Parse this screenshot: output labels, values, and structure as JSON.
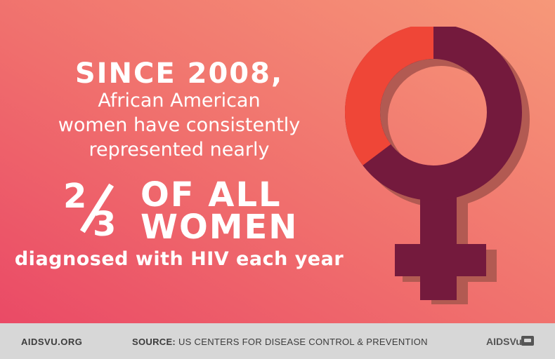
{
  "infographic": {
    "since": "SINCE 2008,",
    "line1": "African American",
    "line2": "women have consistently",
    "line3": "represented nearly",
    "fraction_numerator": "2",
    "fraction_denominator": "3",
    "headline_line1": "OF ALL",
    "headline_line2": "WOMEN",
    "diagnosed": "diagnosed with HIV each year"
  },
  "footer": {
    "site": "AIDSVU.ORG",
    "source_label": "SOURCE:",
    "source_text": "US CENTERS FOR DISEASE CONTROL & PREVENTION",
    "logo": "AIDSVu"
  },
  "colors": {
    "symbol_main": "#741a3d",
    "symbol_highlight": "#ef4637",
    "shadow": "#b25a52",
    "background_start": "#ea4a66",
    "background_end": "#f69879",
    "footer_bg": "#d7d7d7"
  },
  "icons": [
    "female-symbol-icon",
    "aidsvu-logo-icon"
  ]
}
